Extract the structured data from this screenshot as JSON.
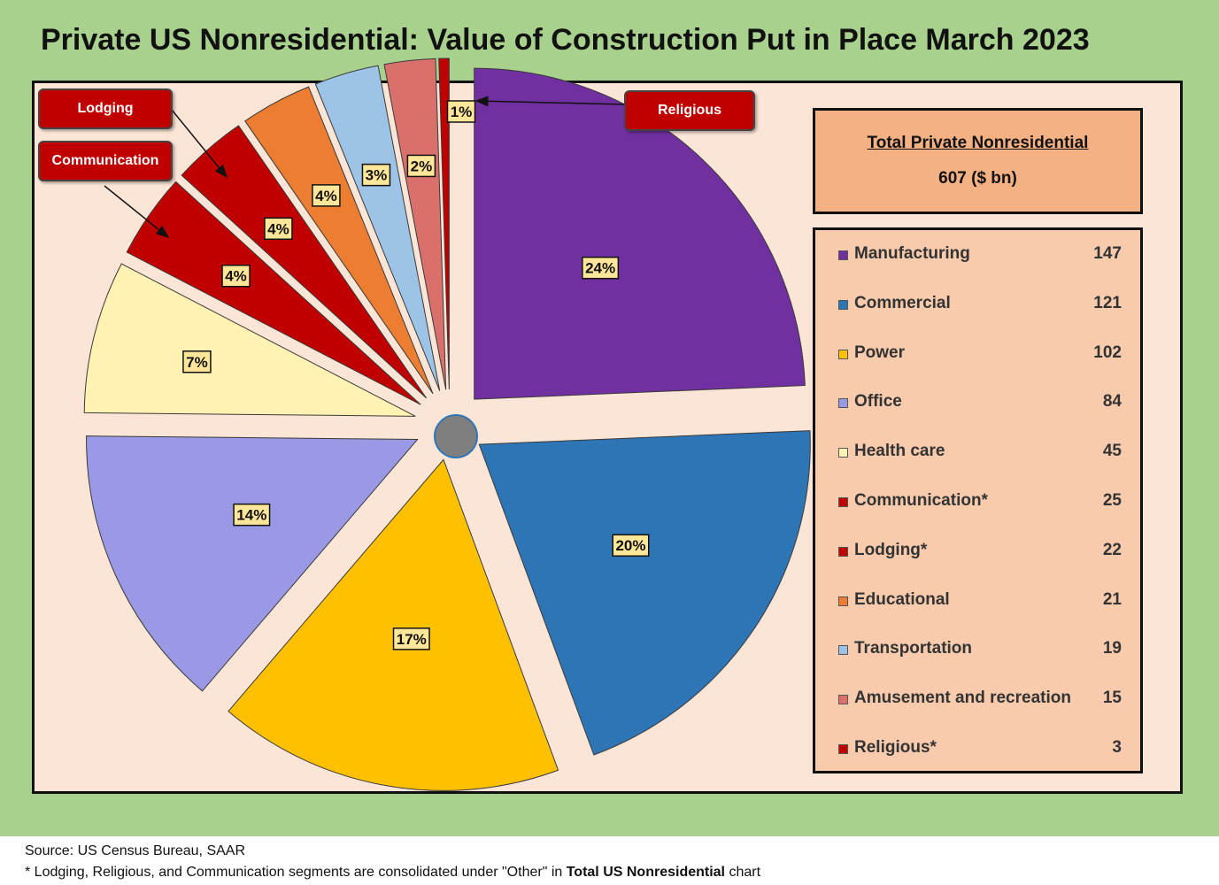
{
  "header": {
    "title": "Private US Nonresidential: Value of Construction Put in Place March 2023"
  },
  "total": {
    "title": "Total Private Nonresidential",
    "value": "607 ($ bn)"
  },
  "callouts": {
    "lodging": "Lodging",
    "communication": "Communication",
    "religious": "Religious"
  },
  "footer": {
    "source": "Source: US Census Bureau, SAAR",
    "note_prefix": "* Lodging, Religious, and Communication segments are consolidated under \"Other\" in ",
    "note_bold": "Total US Nonresidential",
    "note_suffix": " chart"
  },
  "chart_data": {
    "type": "pie",
    "title": "Private US Nonresidential: Value of Construction Put in Place March 2023",
    "unit": "$ bn",
    "total": 607,
    "legend_position": "right",
    "slices": [
      {
        "label": "Manufacturing",
        "value": 147,
        "pct_label": "24%",
        "color": "#7030a0"
      },
      {
        "label": "Commercial",
        "value": 121,
        "pct_label": "20%",
        "color": "#2e75b6"
      },
      {
        "label": "Power",
        "value": 102,
        "pct_label": "17%",
        "color": "#ffc000"
      },
      {
        "label": "Office",
        "value": 84,
        "pct_label": "14%",
        "color": "#9999e6"
      },
      {
        "label": "Health care",
        "value": 45,
        "pct_label": "7%",
        "color": "#fff2b3"
      },
      {
        "label": "Communication*",
        "value": 25,
        "pct_label": "4%",
        "color": "#c00000"
      },
      {
        "label": "Lodging*",
        "value": 22,
        "pct_label": "4%",
        "color": "#c00000"
      },
      {
        "label": "Educational",
        "value": 21,
        "pct_label": "4%",
        "color": "#ed7d31"
      },
      {
        "label": "Transportation",
        "value": 19,
        "pct_label": "3%",
        "color": "#9dc3e6"
      },
      {
        "label": "Amusement and recreation",
        "value": 15,
        "pct_label": "2%",
        "color": "#d9706b"
      },
      {
        "label": "Religious*",
        "value": 3,
        "pct_label": "1%",
        "color": "#c00000"
      }
    ]
  }
}
